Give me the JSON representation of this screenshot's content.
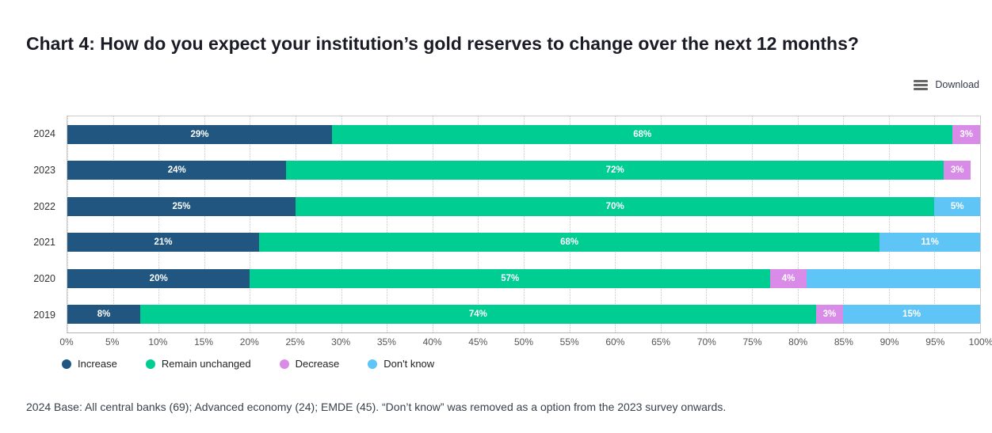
{
  "title": "Chart 4: How do you expect your institution’s gold reserves to change over the next 12 months?",
  "toolbar": {
    "download_label": "Download"
  },
  "footnote": "2024 Base: All central banks (69); Advanced economy (24); EMDE (45). “Don’t know” was removed as a option from the 2023 survey onwards.",
  "chart_data": {
    "type": "bar",
    "orientation": "horizontal",
    "stacked": true,
    "unit": "percent",
    "xlim": [
      0,
      100
    ],
    "grid": "vertical-dotted",
    "legend_position": "bottom-left",
    "x_ticks": [
      "0%",
      "5%",
      "10%",
      "15%",
      "20%",
      "25%",
      "30%",
      "35%",
      "40%",
      "45%",
      "50%",
      "55%",
      "60%",
      "65%",
      "70%",
      "75%",
      "80%",
      "85%",
      "90%",
      "95%",
      "100%"
    ],
    "categories": [
      "2024",
      "2023",
      "2022",
      "2021",
      "2020",
      "2019"
    ],
    "series": [
      {
        "name": "Increase",
        "color": "#20567f",
        "values": [
          29,
          24,
          25,
          21,
          20,
          8
        ]
      },
      {
        "name": "Remain unchanged",
        "color": "#00cd92",
        "values": [
          68,
          72,
          70,
          68,
          57,
          74
        ]
      },
      {
        "name": "Decrease",
        "color": "#d98be8",
        "values": [
          3,
          3,
          0,
          0,
          4,
          3
        ]
      },
      {
        "name": "Don't know",
        "color": "#5fc4f6",
        "values": [
          0,
          0,
          5,
          11,
          19,
          15
        ]
      }
    ],
    "data_labels": [
      [
        "29%",
        "68%",
        "3%",
        ""
      ],
      [
        "24%",
        "72%",
        "3%",
        ""
      ],
      [
        "25%",
        "70%",
        "",
        "5%"
      ],
      [
        "21%",
        "68%",
        "",
        "11%"
      ],
      [
        "20%",
        "57%",
        "4%",
        ""
      ],
      [
        "8%",
        "74%",
        "3%",
        "15%"
      ]
    ]
  }
}
